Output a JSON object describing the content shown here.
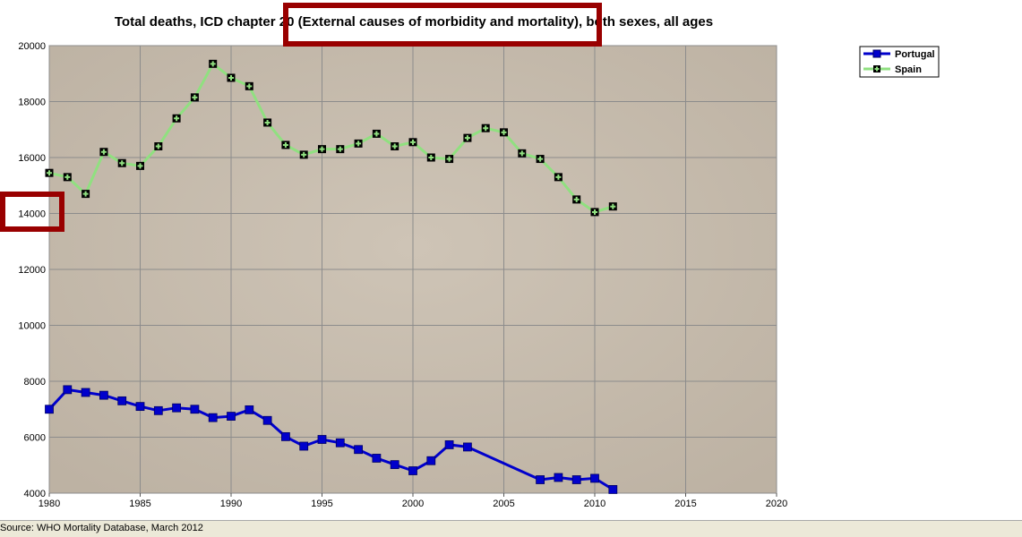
{
  "chart_data": {
    "type": "line",
    "title_parts": [
      "Total deaths, ICD chapter 20 ",
      "(External causes of morbidity and mortality)",
      ", both sexes, all ages"
    ],
    "xlabel": "",
    "ylabel": "",
    "xlim": [
      1980,
      2020
    ],
    "ylim": [
      4000,
      20000
    ],
    "x_ticks": [
      "1980",
      "1985",
      "1990",
      "1995",
      "2000",
      "2005",
      "2010",
      "2015",
      "2020"
    ],
    "y_ticks": [
      "4000",
      "6000",
      "8000",
      "10000",
      "12000",
      "14000",
      "16000",
      "18000",
      "20000"
    ],
    "grid": true,
    "legend_position": "top-right",
    "series": [
      {
        "name": "Portugal",
        "color": "#0000cc",
        "marker": "square",
        "points": [
          [
            1980,
            7000
          ],
          [
            1981,
            7700
          ],
          [
            1982,
            7600
          ],
          [
            1983,
            7500
          ],
          [
            1984,
            7300
          ],
          [
            1985,
            7100
          ],
          [
            1986,
            6950
          ],
          [
            1987,
            7050
          ],
          [
            1988,
            7000
          ],
          [
            1989,
            6700
          ],
          [
            1990,
            6750
          ],
          [
            1991,
            6980
          ],
          [
            1992,
            6600
          ],
          [
            1993,
            6020
          ],
          [
            1994,
            5680
          ],
          [
            1995,
            5920
          ],
          [
            1996,
            5800
          ],
          [
            1997,
            5560
          ],
          [
            1998,
            5250
          ],
          [
            1999,
            5020
          ],
          [
            2000,
            4800
          ],
          [
            2001,
            5160
          ],
          [
            2002,
            5730
          ],
          [
            2003,
            5650
          ],
          [
            2007,
            4480
          ],
          [
            2008,
            4560
          ],
          [
            2009,
            4480
          ],
          [
            2010,
            4530
          ],
          [
            2011,
            4130
          ]
        ]
      },
      {
        "name": "Spain",
        "color": "#90e080",
        "marker": "cross",
        "points": [
          [
            1980,
            15450
          ],
          [
            1981,
            15300
          ],
          [
            1982,
            14700
          ],
          [
            1983,
            16200
          ],
          [
            1984,
            15800
          ],
          [
            1985,
            15700
          ],
          [
            1986,
            16400
          ],
          [
            1987,
            17400
          ],
          [
            1988,
            18150
          ],
          [
            1989,
            19350
          ],
          [
            1990,
            18850
          ],
          [
            1991,
            18550
          ],
          [
            1992,
            17250
          ],
          [
            1993,
            16450
          ],
          [
            1994,
            16100
          ],
          [
            1995,
            16300
          ],
          [
            1996,
            16300
          ],
          [
            1997,
            16500
          ],
          [
            1998,
            16850
          ],
          [
            1999,
            16400
          ],
          [
            2000,
            16550
          ],
          [
            2001,
            16000
          ],
          [
            2002,
            15950
          ],
          [
            2003,
            16700
          ],
          [
            2004,
            17050
          ],
          [
            2005,
            16900
          ],
          [
            2006,
            16150
          ],
          [
            2007,
            15950
          ],
          [
            2008,
            15300
          ],
          [
            2009,
            14500
          ],
          [
            2010,
            14050
          ],
          [
            2011,
            14250
          ]
        ]
      }
    ],
    "highlights": [
      {
        "target": "title",
        "color": "#990000"
      },
      {
        "target": "y-tick-14000",
        "color": "#990000"
      }
    ]
  },
  "source": "Source: WHO Mortality Database, March 2012"
}
